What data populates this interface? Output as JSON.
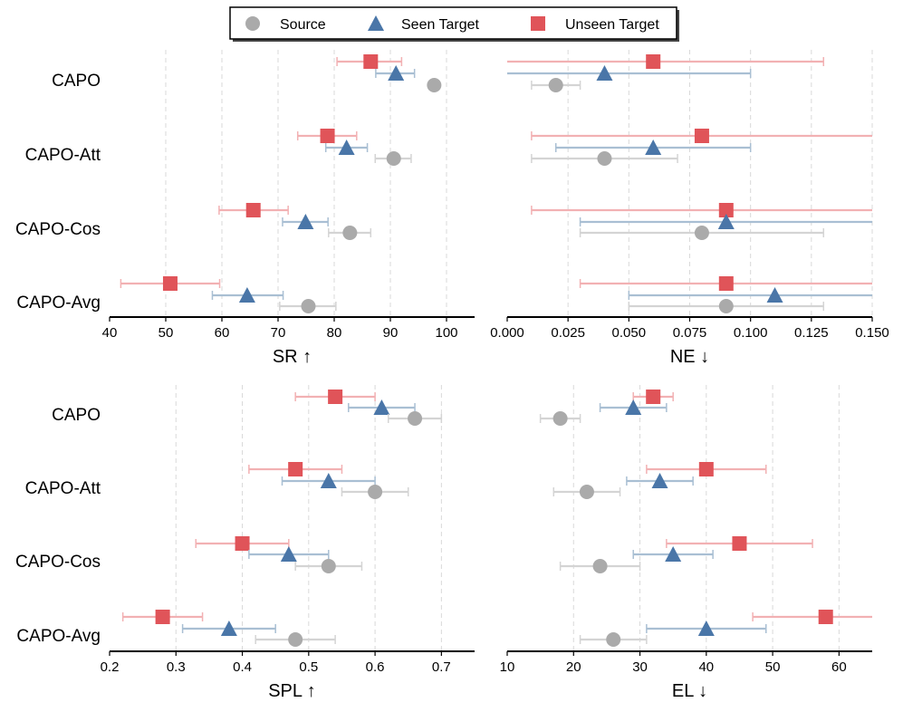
{
  "legend": {
    "items": [
      {
        "key": "source",
        "label": "Source",
        "marker": "circle",
        "color": "#aaaaaa"
      },
      {
        "key": "seen",
        "label": "Seen Target",
        "marker": "triangle",
        "color": "#4a76a8"
      },
      {
        "key": "unseen",
        "label": "Unseen Target",
        "marker": "square",
        "color": "#e05459"
      }
    ]
  },
  "colors": {
    "source_bar": "#d4d4d4",
    "seen_bar": "#a9bfd3",
    "unseen_bar": "#f2b1b3",
    "grid": "#d9d9d9"
  },
  "chart_data": [
    {
      "type": "scatter",
      "xlabel": "SR ↑",
      "xlim": [
        40,
        105
      ],
      "xticks": [
        40,
        50,
        60,
        70,
        80,
        90,
        100
      ],
      "tick_format": "int",
      "grid": true,
      "methods": [
        "CAPO",
        "CAPO-Att",
        "CAPO-Cos",
        "CAPO-Avg"
      ],
      "series": [
        {
          "name": "Unseen Target",
          "values": [
            86.5,
            78.8,
            65.6,
            50.8
          ],
          "err_low": [
            80.5,
            73.5,
            59.5,
            42.0
          ],
          "err_high": [
            92.0,
            84.0,
            71.8,
            59.6
          ]
        },
        {
          "name": "Seen Target",
          "values": [
            91.0,
            82.2,
            74.9,
            64.5
          ],
          "err_low": [
            87.4,
            78.5,
            70.8,
            58.3
          ],
          "err_high": [
            94.3,
            85.9,
            78.9,
            70.9
          ]
        },
        {
          "name": "Source",
          "values": [
            97.8,
            90.6,
            82.8,
            75.4
          ],
          "err_low": null,
          "err_high": null
        },
        {
          "name": "Source",
          "values": [],
          "err_low": [],
          "err_high": []
        }
      ],
      "source_err_low": [
        null,
        87.3,
        79.0,
        70.3
      ],
      "source_err_high": [
        null,
        93.7,
        86.5,
        80.3
      ]
    },
    {
      "type": "scatter",
      "xlabel": "NE ↓",
      "xlim": [
        0.0,
        0.15
      ],
      "xticks": [
        0.0,
        0.025,
        0.05,
        0.075,
        0.1,
        0.125,
        0.15
      ],
      "tick_format": "fixed3",
      "grid": true,
      "methods": [
        "CAPO",
        "CAPO-Att",
        "CAPO-Cos",
        "CAPO-Avg"
      ],
      "series": [
        {
          "name": "Unseen Target",
          "values": [
            0.06,
            0.08,
            0.09,
            0.09
          ],
          "err_low": [
            0.0,
            0.01,
            0.01,
            0.03
          ],
          "err_high": [
            0.13,
            0.15,
            0.15,
            0.15
          ]
        },
        {
          "name": "Seen Target",
          "values": [
            0.04,
            0.06,
            0.09,
            0.11
          ],
          "err_low": [
            0.0,
            0.02,
            0.03,
            0.05
          ],
          "err_high": [
            0.1,
            0.1,
            0.15,
            0.15
          ]
        },
        {
          "name": "Source",
          "values": [
            0.02,
            0.04,
            0.08,
            0.09
          ],
          "err_low": [
            0.01,
            0.01,
            0.03,
            0.05
          ],
          "err_high": [
            0.03,
            0.07,
            0.13,
            0.13
          ]
        }
      ]
    },
    {
      "type": "scatter",
      "xlabel": "SPL ↑",
      "xlim": [
        0.2,
        0.75
      ],
      "xticks": [
        0.2,
        0.3,
        0.4,
        0.5,
        0.6,
        0.7
      ],
      "tick_format": "fixed1",
      "grid": true,
      "methods": [
        "CAPO",
        "CAPO-Att",
        "CAPO-Cos",
        "CAPO-Avg"
      ],
      "series": [
        {
          "name": "Unseen Target",
          "values": [
            0.54,
            0.48,
            0.4,
            0.28
          ],
          "err_low": [
            0.48,
            0.41,
            0.33,
            0.22
          ],
          "err_high": [
            0.6,
            0.55,
            0.47,
            0.34
          ]
        },
        {
          "name": "Seen Target",
          "values": [
            0.61,
            0.53,
            0.47,
            0.38
          ],
          "err_low": [
            0.56,
            0.46,
            0.41,
            0.31
          ],
          "err_high": [
            0.66,
            0.6,
            0.53,
            0.45
          ]
        },
        {
          "name": "Source",
          "values": [
            0.66,
            0.6,
            0.53,
            0.48
          ],
          "err_low": [
            0.62,
            0.55,
            0.48,
            0.42
          ],
          "err_high": [
            0.7,
            0.65,
            0.58,
            0.54
          ]
        }
      ]
    },
    {
      "type": "scatter",
      "xlabel": "EL ↓",
      "xlim": [
        10,
        65
      ],
      "xticks": [
        10,
        20,
        30,
        40,
        50,
        60
      ],
      "tick_format": "int",
      "grid": true,
      "methods": [
        "CAPO",
        "CAPO-Att",
        "CAPO-Cos",
        "CAPO-Avg"
      ],
      "series": [
        {
          "name": "Unseen Target",
          "values": [
            32,
            40,
            45,
            58
          ],
          "err_low": [
            29,
            31,
            34,
            47
          ],
          "err_high": [
            35,
            49,
            56,
            65
          ]
        },
        {
          "name": "Seen Target",
          "values": [
            29,
            33,
            35,
            40
          ],
          "err_low": [
            24,
            28,
            29,
            31
          ],
          "err_high": [
            34,
            38,
            41,
            49
          ]
        },
        {
          "name": "Source",
          "values": [
            18,
            22,
            24,
            26
          ],
          "err_low": [
            15,
            17,
            18,
            21
          ],
          "err_high": [
            21,
            27,
            30,
            31
          ]
        }
      ]
    }
  ]
}
